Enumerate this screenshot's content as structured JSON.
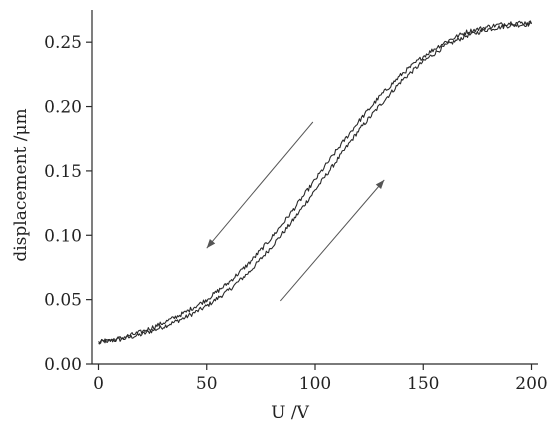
{
  "chart_data": {
    "type": "line",
    "title": "",
    "xlabel": "U /V",
    "ylabel": "displacement /μm",
    "xlim": [
      -3,
      203
    ],
    "ylim": [
      0,
      0.275
    ],
    "xticks": [
      0,
      50,
      100,
      150,
      200
    ],
    "xtick_labels": [
      "0",
      "50",
      "100",
      "150",
      "200"
    ],
    "yticks": [
      0.0,
      0.05,
      0.1,
      0.15,
      0.2,
      0.25
    ],
    "ytick_labels": [
      "0.00",
      "0.05",
      "0.10",
      "0.15",
      "0.20",
      "0.25"
    ],
    "grid": false,
    "legend": "none",
    "series": [
      {
        "x": [
          0,
          10,
          20,
          30,
          40,
          50,
          60,
          70,
          80,
          90,
          100,
          110,
          120,
          130,
          140,
          150,
          160,
          170,
          180,
          190,
          200
        ],
        "values": [
          0.017,
          0.019,
          0.023,
          0.029,
          0.036,
          0.045,
          0.057,
          0.072,
          0.091,
          0.112,
          0.135,
          0.158,
          0.181,
          0.201,
          0.22,
          0.235,
          0.247,
          0.255,
          0.26,
          0.263,
          0.264
        ]
      },
      {
        "x": [
          0,
          10,
          20,
          30,
          40,
          50,
          60,
          70,
          80,
          90,
          100,
          110,
          120,
          130,
          140,
          150,
          160,
          170,
          180,
          190,
          200
        ],
        "values": [
          0.017,
          0.02,
          0.025,
          0.032,
          0.04,
          0.05,
          0.063,
          0.079,
          0.098,
          0.12,
          0.143,
          0.166,
          0.188,
          0.208,
          0.225,
          0.239,
          0.25,
          0.258,
          0.262,
          0.265,
          0.265
        ]
      }
    ],
    "arrows": [
      {
        "direction": "down-left",
        "from": [
          99,
          0.188
        ],
        "to": [
          50,
          0.09
        ]
      },
      {
        "direction": "up-right",
        "from": [
          84,
          0.049
        ],
        "to": [
          132,
          0.143
        ]
      }
    ],
    "colors": {
      "line": "#2a2a2a",
      "axis": "#2a2a2a",
      "arrow": "#555555"
    }
  }
}
